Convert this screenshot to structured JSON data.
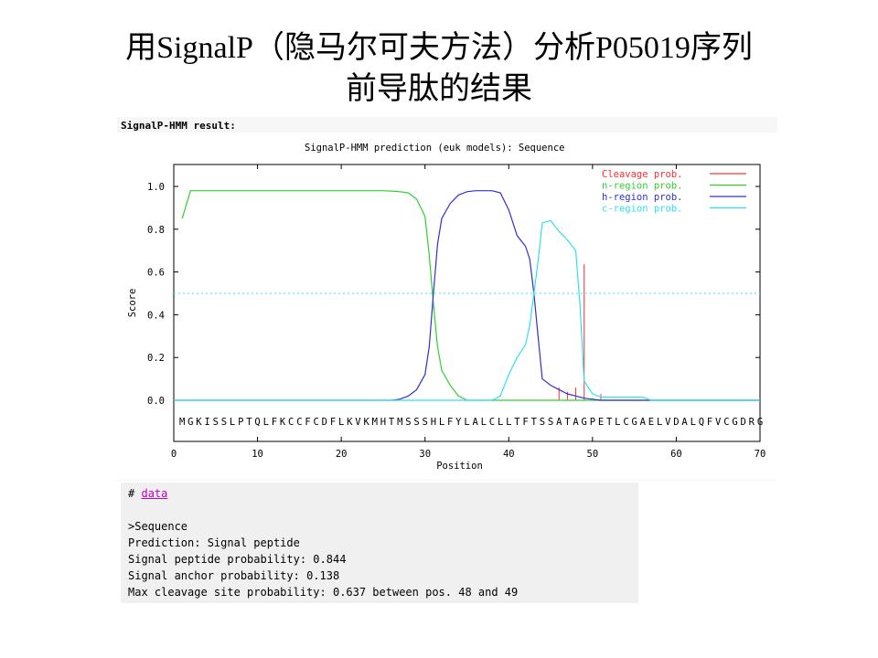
{
  "slide": {
    "title_line1": "用SignalP（隐马尔可夫方法）分析P05019序列",
    "title_line2": "前导肽的结果"
  },
  "panel": {
    "header": "SignalP-HMM result:"
  },
  "chart_data": {
    "type": "line",
    "title": "SignalP-HMM prediction (euk models): Sequence",
    "xlabel": "Position",
    "ylabel": "Score",
    "xlim": [
      0,
      70
    ],
    "ylim": [
      0,
      1.0
    ],
    "x_ticks": [
      "0",
      "10",
      "20",
      "30",
      "40",
      "50",
      "60",
      "70"
    ],
    "y_ticks": [
      "0.0",
      "0.2",
      "0.4",
      "0.6",
      "0.8",
      "1.0"
    ],
    "threshold": 0.5,
    "legend_position": "top-right",
    "sequence": "MGKISSLPTQLFKCCFCDFLKVKMHTMSSSHLFYLALCLLTFTSSATAGPETLCGAELVDALQFVCGDRG",
    "series": [
      {
        "name": "Cleavage prob.",
        "color": "#ff3030",
        "style": "impulse",
        "x": [
          46,
          47,
          48,
          49,
          51
        ],
        "y": [
          0.06,
          0.04,
          0.06,
          0.637,
          0.03
        ]
      },
      {
        "name": "n-region prob.",
        "color": "#30d030",
        "x": [
          1,
          2,
          5,
          10,
          15,
          20,
          25,
          26,
          27,
          28,
          29,
          30,
          30.5,
          31,
          31.5,
          32,
          33,
          34,
          35,
          36,
          40,
          70
        ],
        "y": [
          0.85,
          0.98,
          0.98,
          0.98,
          0.98,
          0.98,
          0.98,
          0.978,
          0.975,
          0.97,
          0.94,
          0.86,
          0.68,
          0.45,
          0.25,
          0.14,
          0.07,
          0.02,
          0.0,
          0.0,
          0.0,
          0.0
        ]
      },
      {
        "name": "h-region prob.",
        "color": "#3030d0",
        "x": [
          0,
          26,
          27,
          28,
          29,
          30,
          30.5,
          31,
          31.5,
          32,
          33,
          34,
          35,
          36,
          37,
          38,
          39,
          40,
          41,
          42,
          42.5,
          43,
          43.5,
          44,
          45,
          46,
          47,
          48,
          49,
          50,
          51,
          56,
          57,
          70
        ],
        "y": [
          0.0,
          0.0,
          0.005,
          0.02,
          0.05,
          0.12,
          0.25,
          0.5,
          0.73,
          0.85,
          0.92,
          0.96,
          0.975,
          0.98,
          0.98,
          0.98,
          0.97,
          0.89,
          0.77,
          0.72,
          0.66,
          0.5,
          0.3,
          0.1,
          0.07,
          0.05,
          0.03,
          0.02,
          0.01,
          0.005,
          0.0,
          0.0,
          0.0,
          0.0
        ]
      },
      {
        "name": "c-region prob.",
        "color": "#30e0f0",
        "x": [
          0,
          38,
          39,
          40,
          41,
          42,
          42.5,
          43,
          43.5,
          44,
          45,
          46,
          47,
          48,
          48.5,
          49,
          50,
          51,
          52,
          53,
          55,
          56,
          57,
          58,
          70
        ],
        "y": [
          0.0,
          0.0,
          0.02,
          0.12,
          0.2,
          0.26,
          0.35,
          0.5,
          0.65,
          0.83,
          0.84,
          0.79,
          0.75,
          0.7,
          0.45,
          0.09,
          0.03,
          0.015,
          0.015,
          0.015,
          0.015,
          0.015,
          0.0,
          0.0,
          0.0
        ]
      }
    ]
  },
  "results": {
    "hash": "#",
    "link_text": "data",
    "seq_line": ">Sequence",
    "prediction": "Prediction: Signal peptide",
    "sp_prob": "Signal peptide probability: 0.844",
    "anchor_prob": "Signal anchor probability: 0.138",
    "cleavage": "Max cleavage site probability: 0.637 between pos. 48 and 49"
  }
}
